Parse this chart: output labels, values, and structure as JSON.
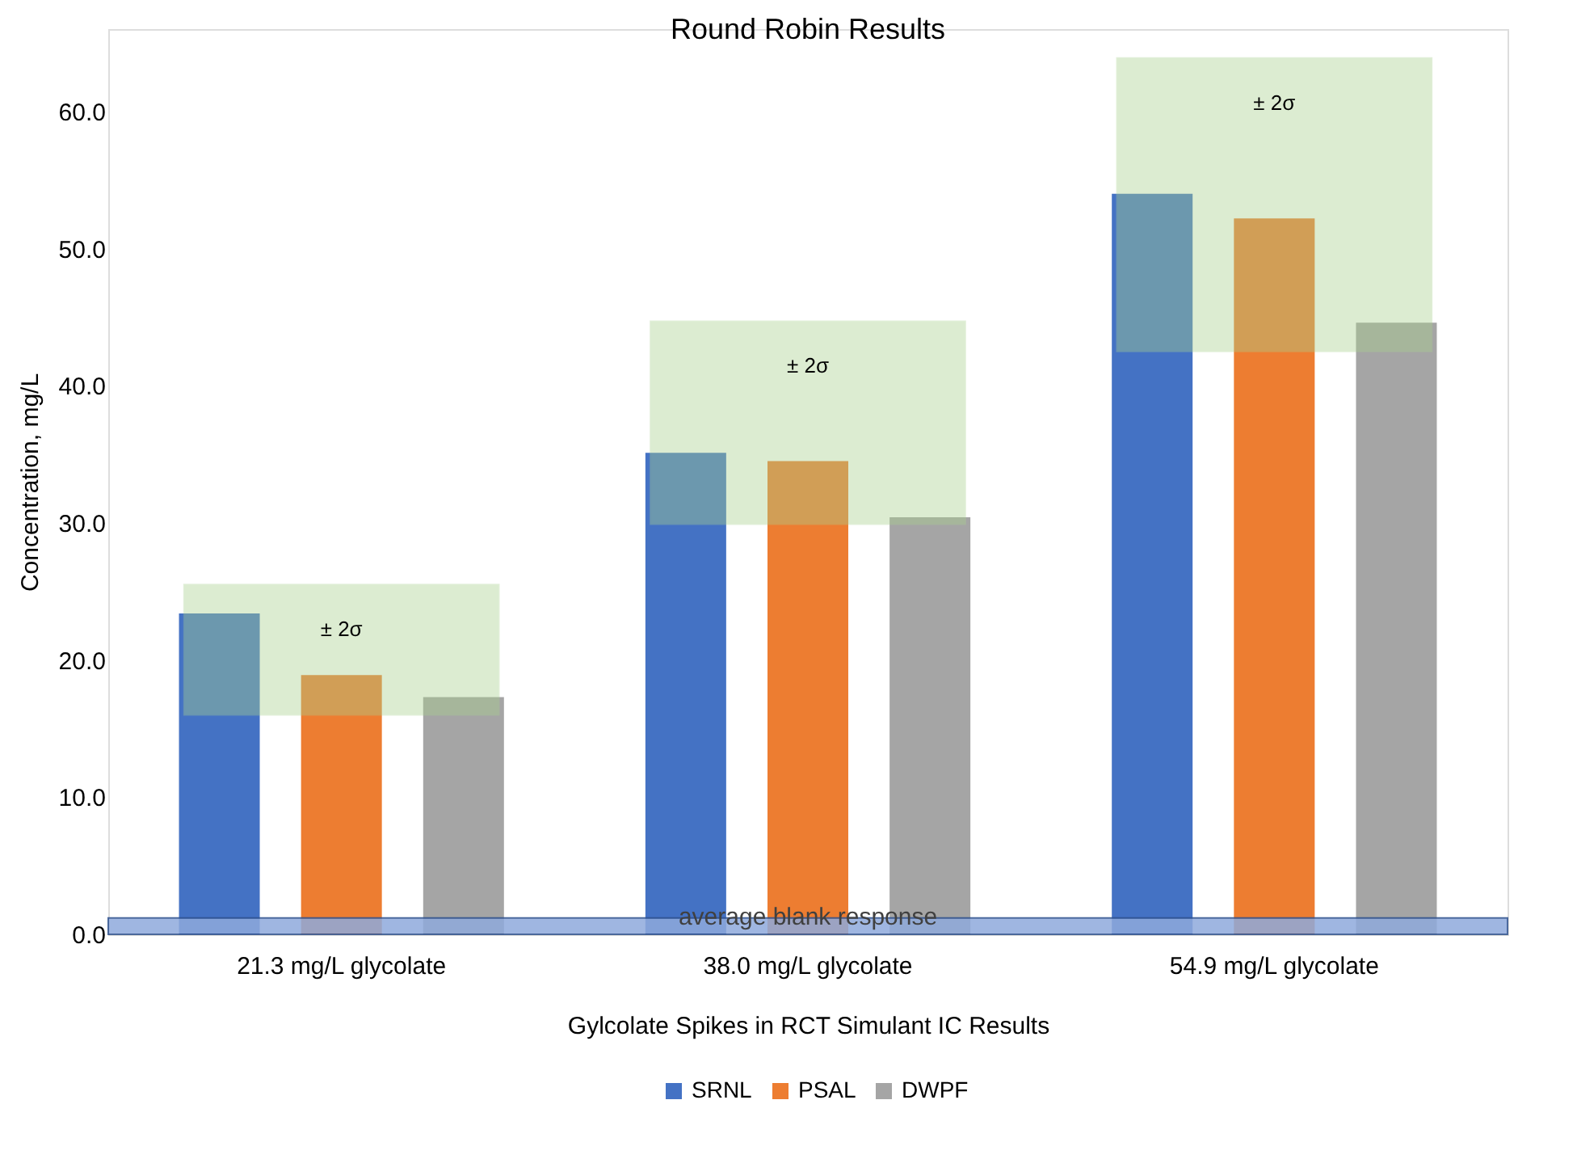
{
  "chart_data": {
    "type": "bar",
    "title": "Round Robin Results",
    "xlabel": "Gylcolate Spikes in RCT Simulant IC Results",
    "ylabel": "Concentration, mg/L",
    "categories": [
      "21.3 mg/L glycolate",
      "38.0 mg/L glycolate",
      "54.9 mg/L glycolate"
    ],
    "series": [
      {
        "name": "SRNL",
        "color": "#4472c4",
        "values": [
          23.4,
          35.1,
          54.0
        ]
      },
      {
        "name": "PSAL",
        "color": "#ed7d31",
        "values": [
          18.9,
          34.5,
          52.2
        ]
      },
      {
        "name": "DWPF",
        "color": "#a5a5a5",
        "values": [
          17.3,
          30.4,
          44.6
        ]
      }
    ],
    "bands": [
      {
        "axis": "y",
        "from": 16.0,
        "to": 25.5,
        "label": "± 2σ",
        "color": "#a9d18e"
      },
      {
        "axis": "y",
        "from": 29.9,
        "to": 44.7,
        "label": "± 2σ",
        "color": "#a9d18e"
      },
      {
        "axis": "y",
        "from": 42.5,
        "to": 63.9,
        "label": "± 2σ",
        "color": "#a9d18e"
      },
      {
        "axis": "y",
        "from": 0,
        "to": 1.2,
        "label": "average blank response",
        "color": "#8faadc"
      }
    ],
    "ylim": [
      0,
      66
    ],
    "yticks": [
      {
        "value": 0,
        "label": "0.0"
      },
      {
        "value": 10,
        "label": "10.0"
      },
      {
        "value": 20,
        "label": "20.0"
      },
      {
        "value": 30,
        "label": "30.0"
      },
      {
        "value": 40,
        "label": "40.0"
      },
      {
        "value": 50,
        "label": "50.0"
      },
      {
        "value": 60,
        "label": "60.0"
      }
    ],
    "grid": false,
    "legend": "bottom"
  }
}
